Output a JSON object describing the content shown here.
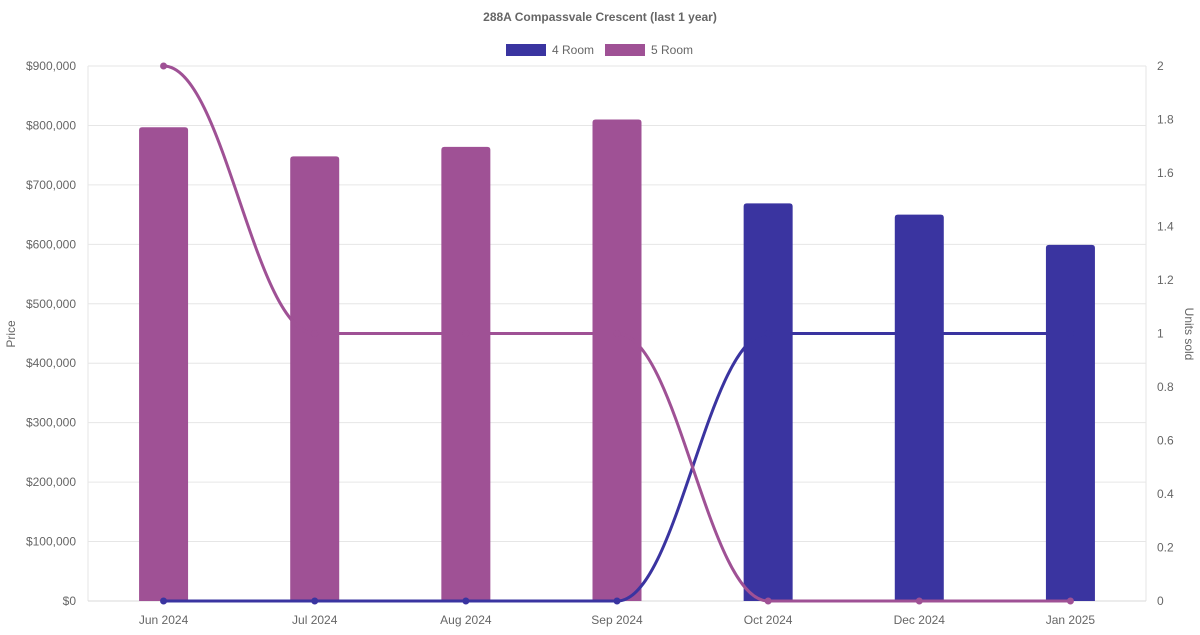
{
  "chart_data": {
    "type": "bar",
    "title": "288A Compassvale Crescent (last 1 year)",
    "categories": [
      "Jun 2024",
      "Jul 2024",
      "Aug 2024",
      "Sep 2024",
      "Oct 2024",
      "Dec 2024",
      "Jan 2025"
    ],
    "legend": {
      "position": "top",
      "items": [
        {
          "name": "4 Room",
          "color": "#3a34a0"
        },
        {
          "name": "5 Room",
          "color": "#9f5195"
        }
      ]
    },
    "y_left": {
      "label": "Price",
      "min": 0,
      "max": 900000,
      "step": 100000,
      "ticks": [
        "$0",
        "$100,000",
        "$200,000",
        "$300,000",
        "$400,000",
        "$500,000",
        "$600,000",
        "$700,000",
        "$800,000",
        "$900,000"
      ]
    },
    "y_right": {
      "label": "Units sold",
      "min": 0,
      "max": 2,
      "step": 0.2,
      "ticks": [
        "0",
        "0.2",
        "0.4",
        "0.6",
        "0.8",
        "1",
        "1.2",
        "1.4",
        "1.6",
        "1.8",
        "2"
      ]
    },
    "grid": true,
    "bar_series": [
      {
        "name": "5 Room",
        "color": "#9f5195",
        "axis": "left",
        "values": [
          797000,
          748000,
          764000,
          810000,
          null,
          null,
          null
        ]
      },
      {
        "name": "4 Room",
        "color": "#3a34a0",
        "axis": "left",
        "values": [
          null,
          null,
          null,
          null,
          669000,
          650000,
          599000
        ]
      }
    ],
    "line_series": [
      {
        "name": "4 Room",
        "color": "#3a34a0",
        "axis": "right",
        "values": [
          0,
          0,
          0,
          0,
          1,
          1,
          1
        ]
      },
      {
        "name": "5 Room",
        "color": "#9f5195",
        "axis": "right",
        "values": [
          2,
          1,
          1,
          1,
          0,
          0,
          0
        ]
      }
    ]
  }
}
